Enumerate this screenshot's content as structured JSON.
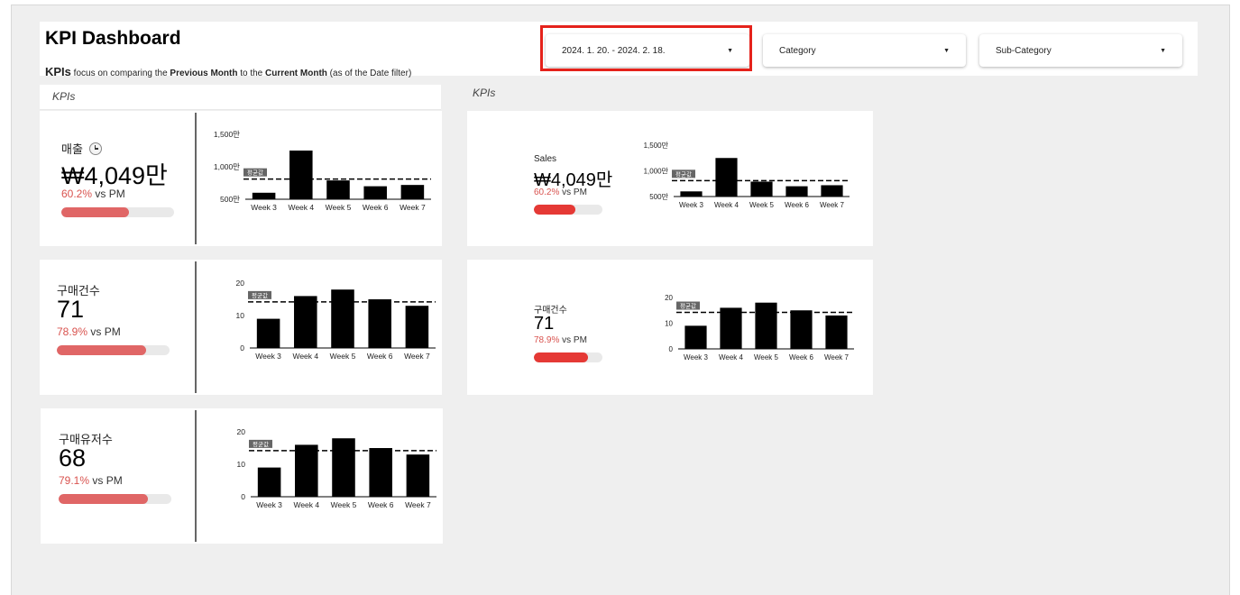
{
  "header": {
    "title": "KPI Dashboard",
    "subtitle_big": "KPIs",
    "subtitle_p1": " focus on comparing the ",
    "subtitle_b1": "Previous Month",
    "subtitle_p2": " to the ",
    "subtitle_b2": "Current Month",
    "subtitle_p3": " (as of the Date filter)"
  },
  "filters": {
    "date": "2024. 1. 20. - 2024. 2. 18.",
    "category": "Category",
    "subcategory": "Sub-Category"
  },
  "panels": {
    "left_title": "KPIs",
    "right_title": "KPIs"
  },
  "colors": {
    "accent_red": "#e5221b",
    "bar": "#000000",
    "progress_left": "#e06666",
    "progress_right": "#e53935"
  },
  "kpis_left": [
    {
      "label": "매출",
      "icon": "clock-icon",
      "value": "₩4,049만",
      "pct": "60.2%",
      "vs": " vs PM",
      "progress": 0.6
    },
    {
      "label": "구매건수",
      "value": "71",
      "pct": "78.9%",
      "vs": " vs PM",
      "progress": 0.79
    },
    {
      "label": "구매유저수",
      "value": "68",
      "pct": "79.1%",
      "vs": " vs PM",
      "progress": 0.79
    }
  ],
  "kpis_right": [
    {
      "label": "Sales",
      "value": "₩4,049만",
      "pct": "60.2%",
      "vs": " vs PM",
      "progress": 0.6
    },
    {
      "label": "구매건수",
      "value": "71",
      "pct": "78.9%",
      "vs": " vs PM",
      "progress": 0.79
    }
  ],
  "chart_data": [
    {
      "type": "bar",
      "categories": [
        "Week 3",
        "Week 4",
        "Week 5",
        "Week 6",
        "Week 7"
      ],
      "values": [
        600,
        1250,
        790,
        700,
        720
      ],
      "avg": 810,
      "avg_label": "평균값",
      "ylim": [
        500,
        1500
      ],
      "yticks": [
        500,
        1000,
        1500
      ],
      "ytick_labels": [
        "500만",
        "1,000만",
        "1,500만"
      ]
    },
    {
      "type": "bar",
      "categories": [
        "Week 3",
        "Week 4",
        "Week 5",
        "Week 6",
        "Week 7"
      ],
      "values": [
        9,
        16,
        18,
        15,
        13
      ],
      "avg": 14.2,
      "avg_label": "평균값",
      "ylim": [
        0,
        20
      ],
      "yticks": [
        0,
        10,
        20
      ],
      "ytick_labels": [
        "0",
        "10",
        "20"
      ]
    },
    {
      "type": "bar",
      "categories": [
        "Week 3",
        "Week 4",
        "Week 5",
        "Week 6",
        "Week 7"
      ],
      "values": [
        9,
        16,
        18,
        15,
        13
      ],
      "avg": 14.2,
      "avg_label": "평균값",
      "ylim": [
        0,
        20
      ],
      "yticks": [
        0,
        10,
        20
      ],
      "ytick_labels": [
        "0",
        "10",
        "20"
      ]
    },
    {
      "type": "bar",
      "categories": [
        "Week 3",
        "Week 4",
        "Week 5",
        "Week 6",
        "Week 7"
      ],
      "values": [
        600,
        1250,
        790,
        700,
        720
      ],
      "avg": 810,
      "avg_label": "평균값",
      "ylim": [
        500,
        1500
      ],
      "yticks": [
        500,
        1000,
        1500
      ],
      "ytick_labels": [
        "500만",
        "1,000만",
        "1,500만"
      ]
    },
    {
      "type": "bar",
      "categories": [
        "Week 3",
        "Week 4",
        "Week 5",
        "Week 6",
        "Week 7"
      ],
      "values": [
        9,
        16,
        18,
        15,
        13
      ],
      "avg": 14.2,
      "avg_label": "평균값",
      "ylim": [
        0,
        20
      ],
      "yticks": [
        0,
        10,
        20
      ],
      "ytick_labels": [
        "0",
        "10",
        "20"
      ]
    }
  ]
}
